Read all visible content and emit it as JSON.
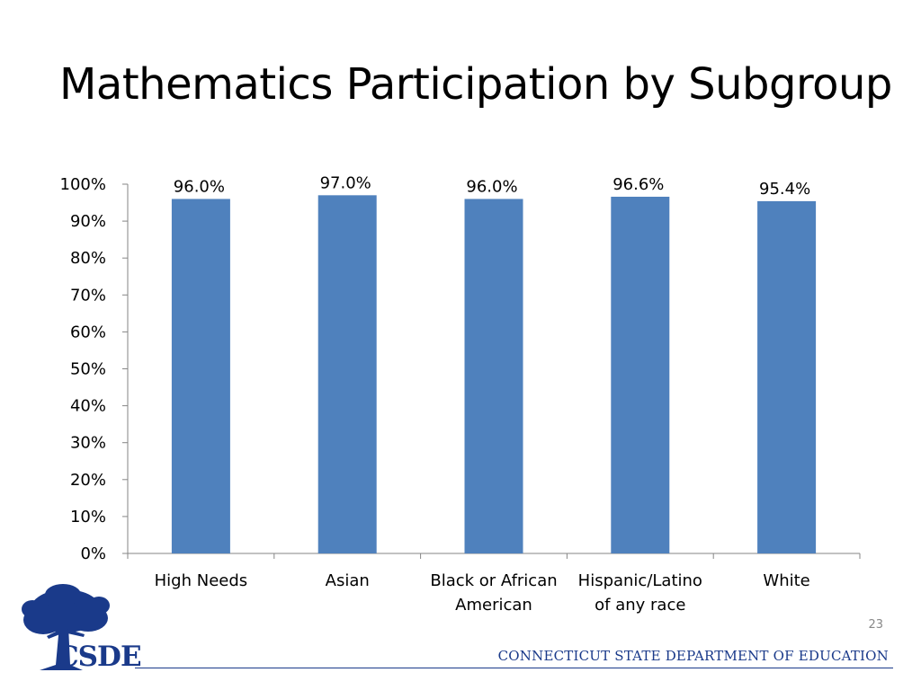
{
  "slide": {
    "title": "Mathematics Participation by Subgroup",
    "page_number": "23",
    "footer": "CONNECTICUT STATE DEPARTMENT OF EDUCATION",
    "logo_text": "CSDE",
    "logo_icon": "tree-icon"
  },
  "chart_data": {
    "type": "bar",
    "title": "",
    "xlabel": "",
    "ylabel": "",
    "ylim": [
      0,
      100
    ],
    "yticks": [
      "0%",
      "10%",
      "20%",
      "30%",
      "40%",
      "50%",
      "60%",
      "70%",
      "80%",
      "90%",
      "100%"
    ],
    "categories": [
      [
        "High Needs"
      ],
      [
        "Asian"
      ],
      [
        "Black or African",
        "American"
      ],
      [
        "Hispanic/Latino",
        "of any race"
      ],
      [
        "White"
      ]
    ],
    "values": [
      96.0,
      97.0,
      96.0,
      96.6,
      95.4
    ],
    "data_labels": [
      "96.0%",
      "97.0%",
      "96.0%",
      "96.6%",
      "95.4%"
    ],
    "grid": false,
    "legend": "none",
    "bar_color": "#4f81bd",
    "axis_color": "#868686"
  }
}
